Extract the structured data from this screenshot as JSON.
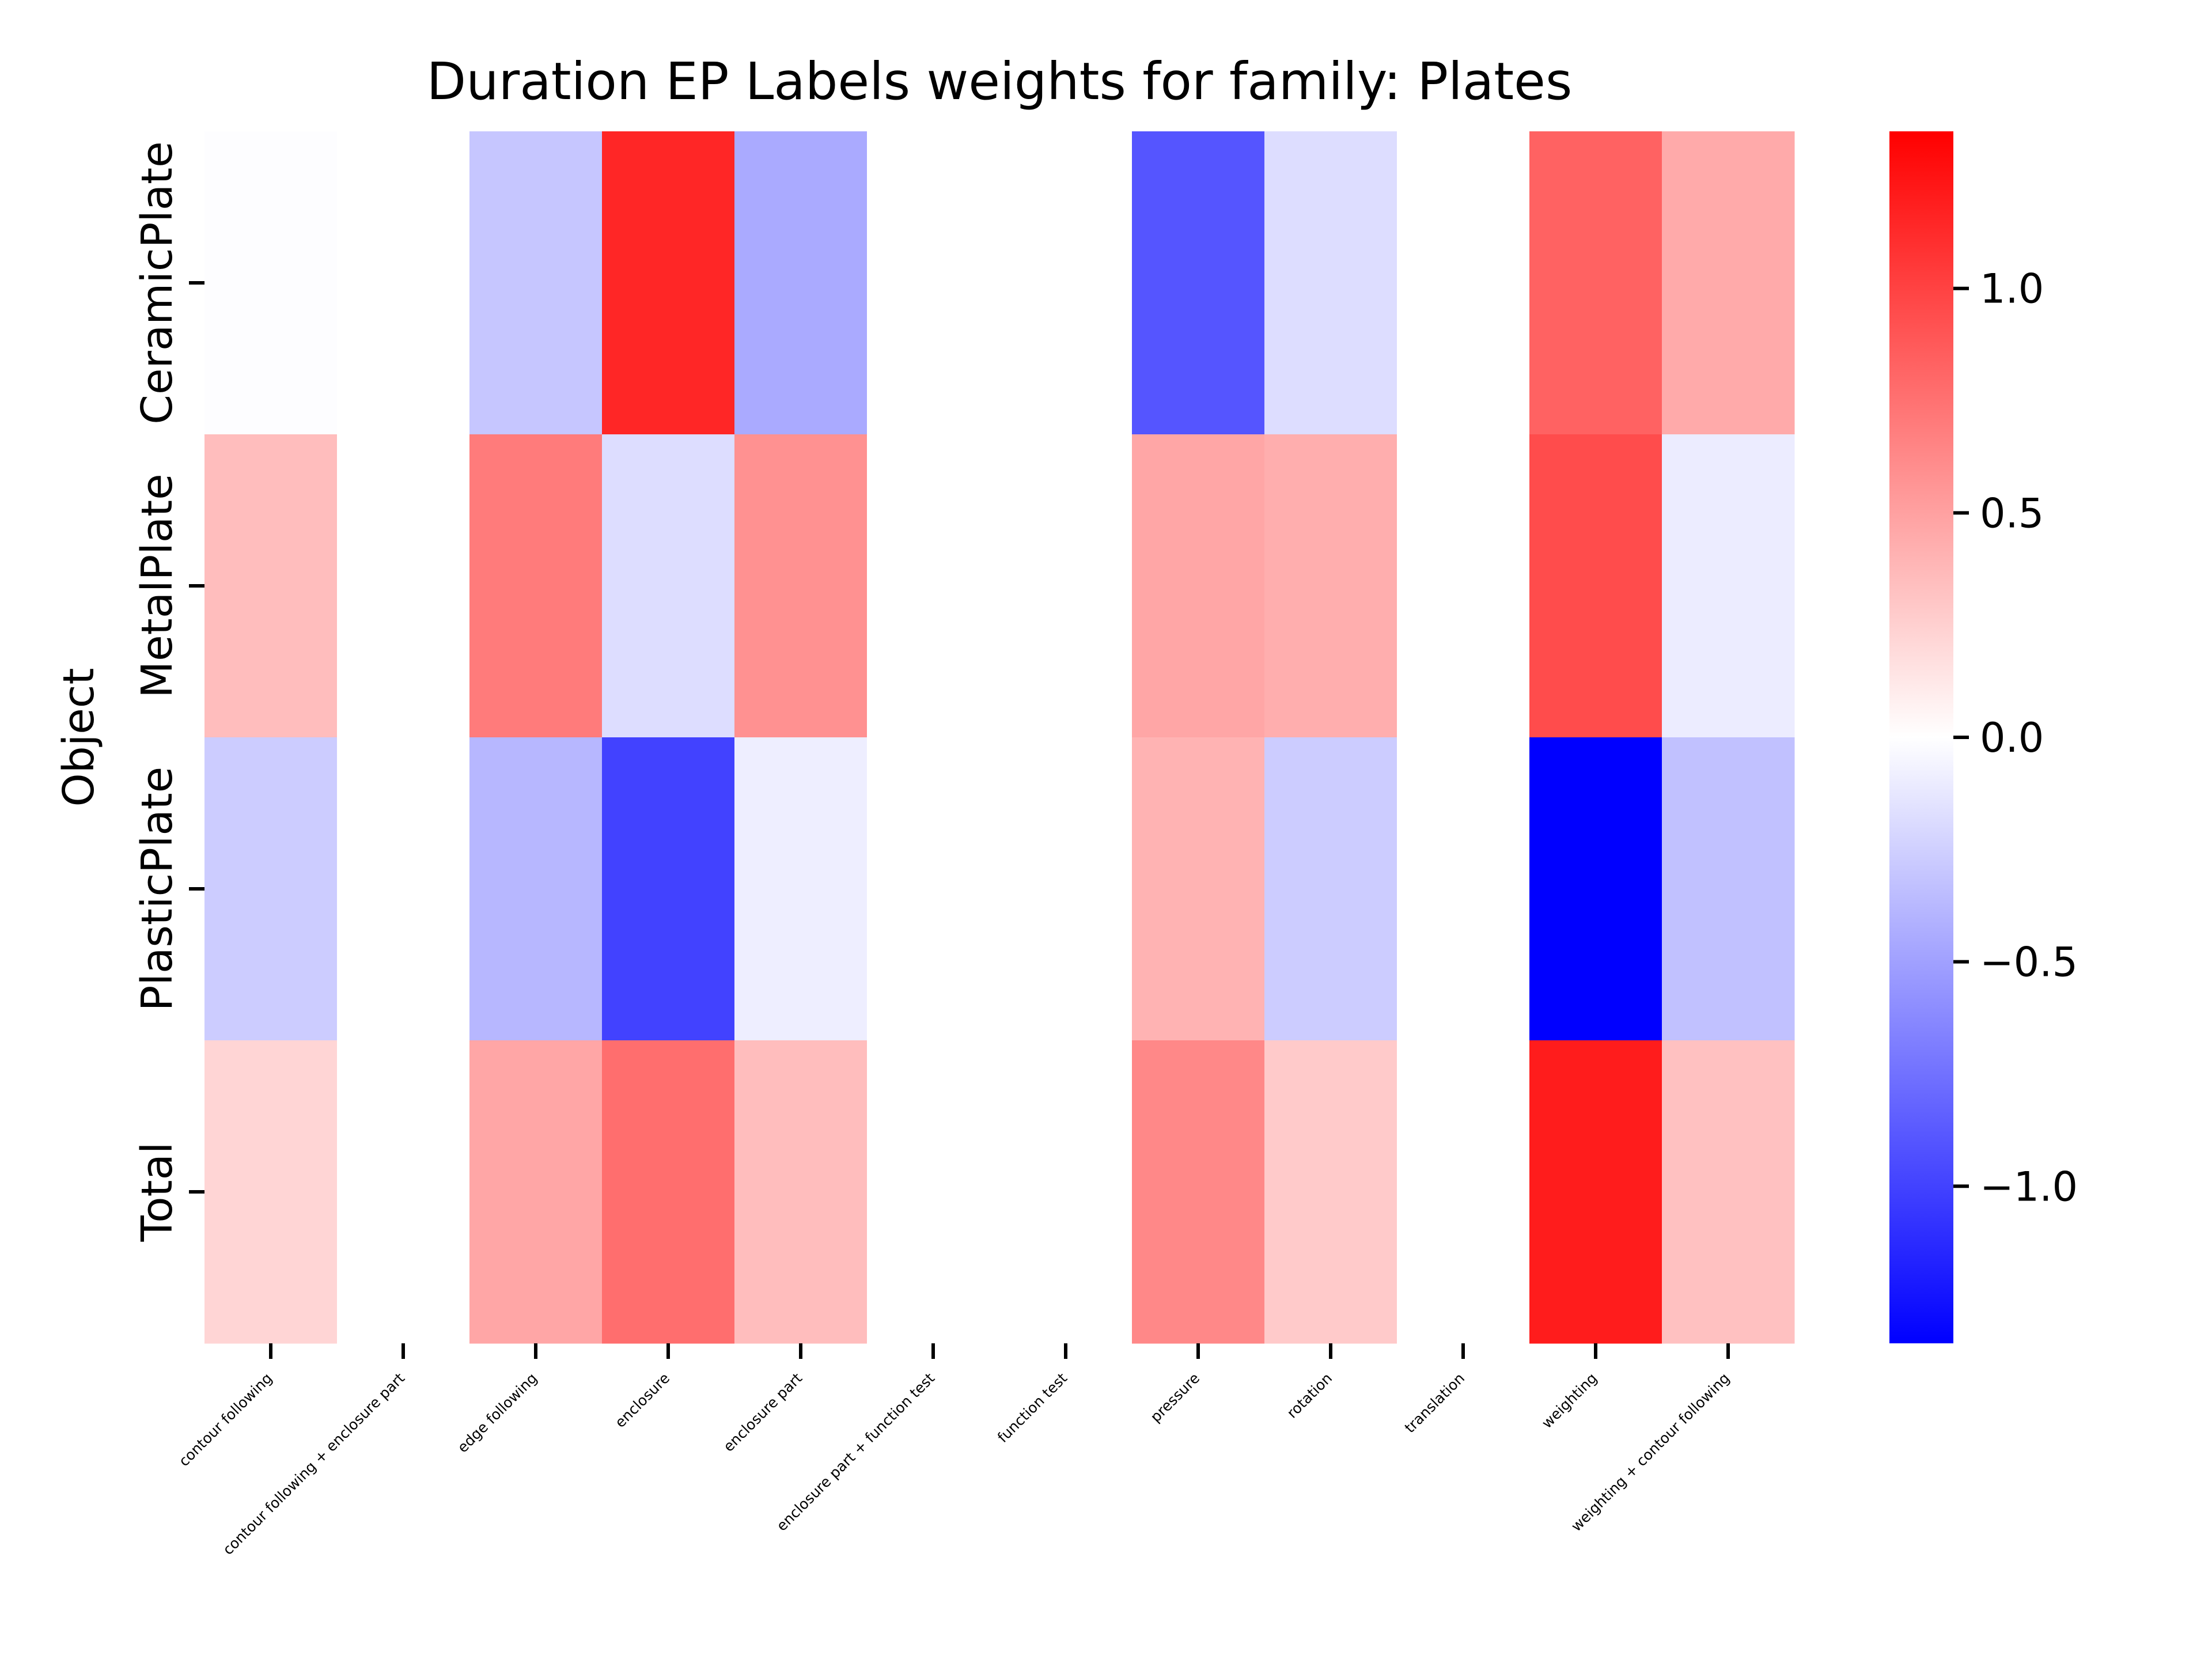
{
  "chart_data": {
    "type": "heatmap",
    "title": "Duration EP Labels weights for family: Plates",
    "ylabel": "Object",
    "xlabel": "",
    "rows": [
      "CeramicPlate",
      "MetalPlate",
      "PlasticPlate",
      "Total"
    ],
    "columns": [
      "contour following",
      "contour following + enclosure part",
      "edge following",
      "enclosure",
      "enclosure part",
      "enclosure part + function test",
      "function test",
      "pressure",
      "rotation",
      "translation",
      "weighting",
      "weighting + contour following"
    ],
    "values": [
      [
        -0.01,
        0.0,
        -0.3,
        1.15,
        -0.45,
        0.0,
        0.0,
        -0.9,
        -0.18,
        0.0,
        0.83,
        0.45
      ],
      [
        0.35,
        0.0,
        0.7,
        -0.18,
        0.58,
        0.0,
        0.0,
        0.47,
        0.43,
        0.0,
        0.95,
        -0.1
      ],
      [
        -0.27,
        0.0,
        -0.38,
        -1.0,
        -0.09,
        0.0,
        0.0,
        0.4,
        -0.27,
        0.0,
        -1.35,
        -0.33
      ],
      [
        0.22,
        0.0,
        0.47,
        0.77,
        0.35,
        0.0,
        0.0,
        0.63,
        0.28,
        0.0,
        1.2,
        0.33
      ]
    ],
    "colormap": {
      "name": "bwr",
      "low": "#0000ff",
      "mid": "#ffffff",
      "high": "#ff0000",
      "vmin": -1.35,
      "vmax": 1.35
    },
    "colorbar_ticks": [
      1.0,
      0.5,
      0.0,
      -0.5,
      -1.0
    ],
    "colorbar_tick_labels": [
      "1.0",
      "0.5",
      "0.0",
      "−0.5",
      "−1.0"
    ]
  }
}
